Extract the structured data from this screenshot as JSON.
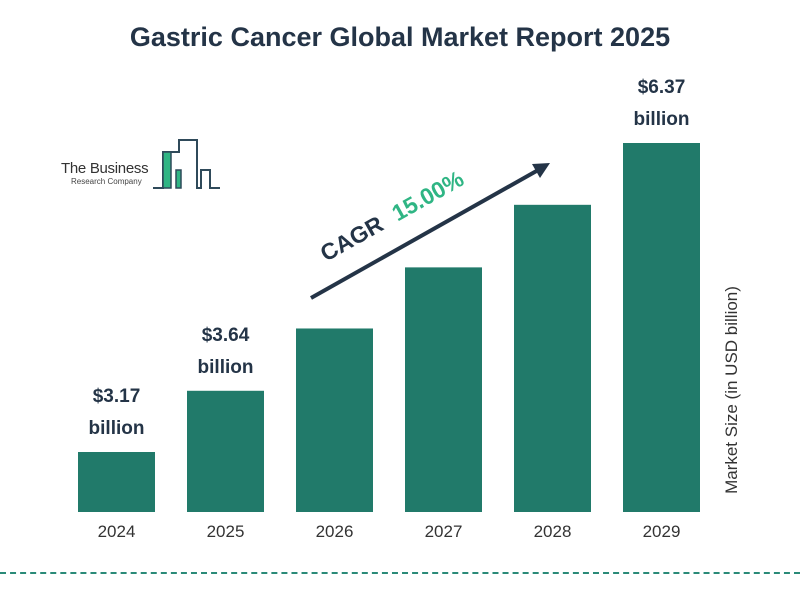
{
  "chart_data": {
    "type": "bar",
    "title": "Gastric Cancer Global Market Report 2025",
    "categories": [
      "2024",
      "2025",
      "2026",
      "2027",
      "2028",
      "2029"
    ],
    "values": [
      3.17,
      3.64,
      4.19,
      4.81,
      5.54,
      6.37
    ],
    "data_labels": [
      {
        "index": 0,
        "value": "$3.17",
        "unit": "billion"
      },
      {
        "index": 1,
        "value": "$3.64",
        "unit": "billion"
      },
      {
        "index": 5,
        "value": "$6.37",
        "unit": "billion"
      }
    ],
    "xlabel": "",
    "ylabel": "Market Size (in USD billion)",
    "grid": false,
    "bar_color": "#217a6a",
    "annotation": {
      "label": "CAGR",
      "value": "15.00%",
      "label_color": "#243447",
      "value_color": "#2fb584"
    }
  },
  "logo": {
    "line1": "The Business",
    "line2": "Research Company"
  }
}
